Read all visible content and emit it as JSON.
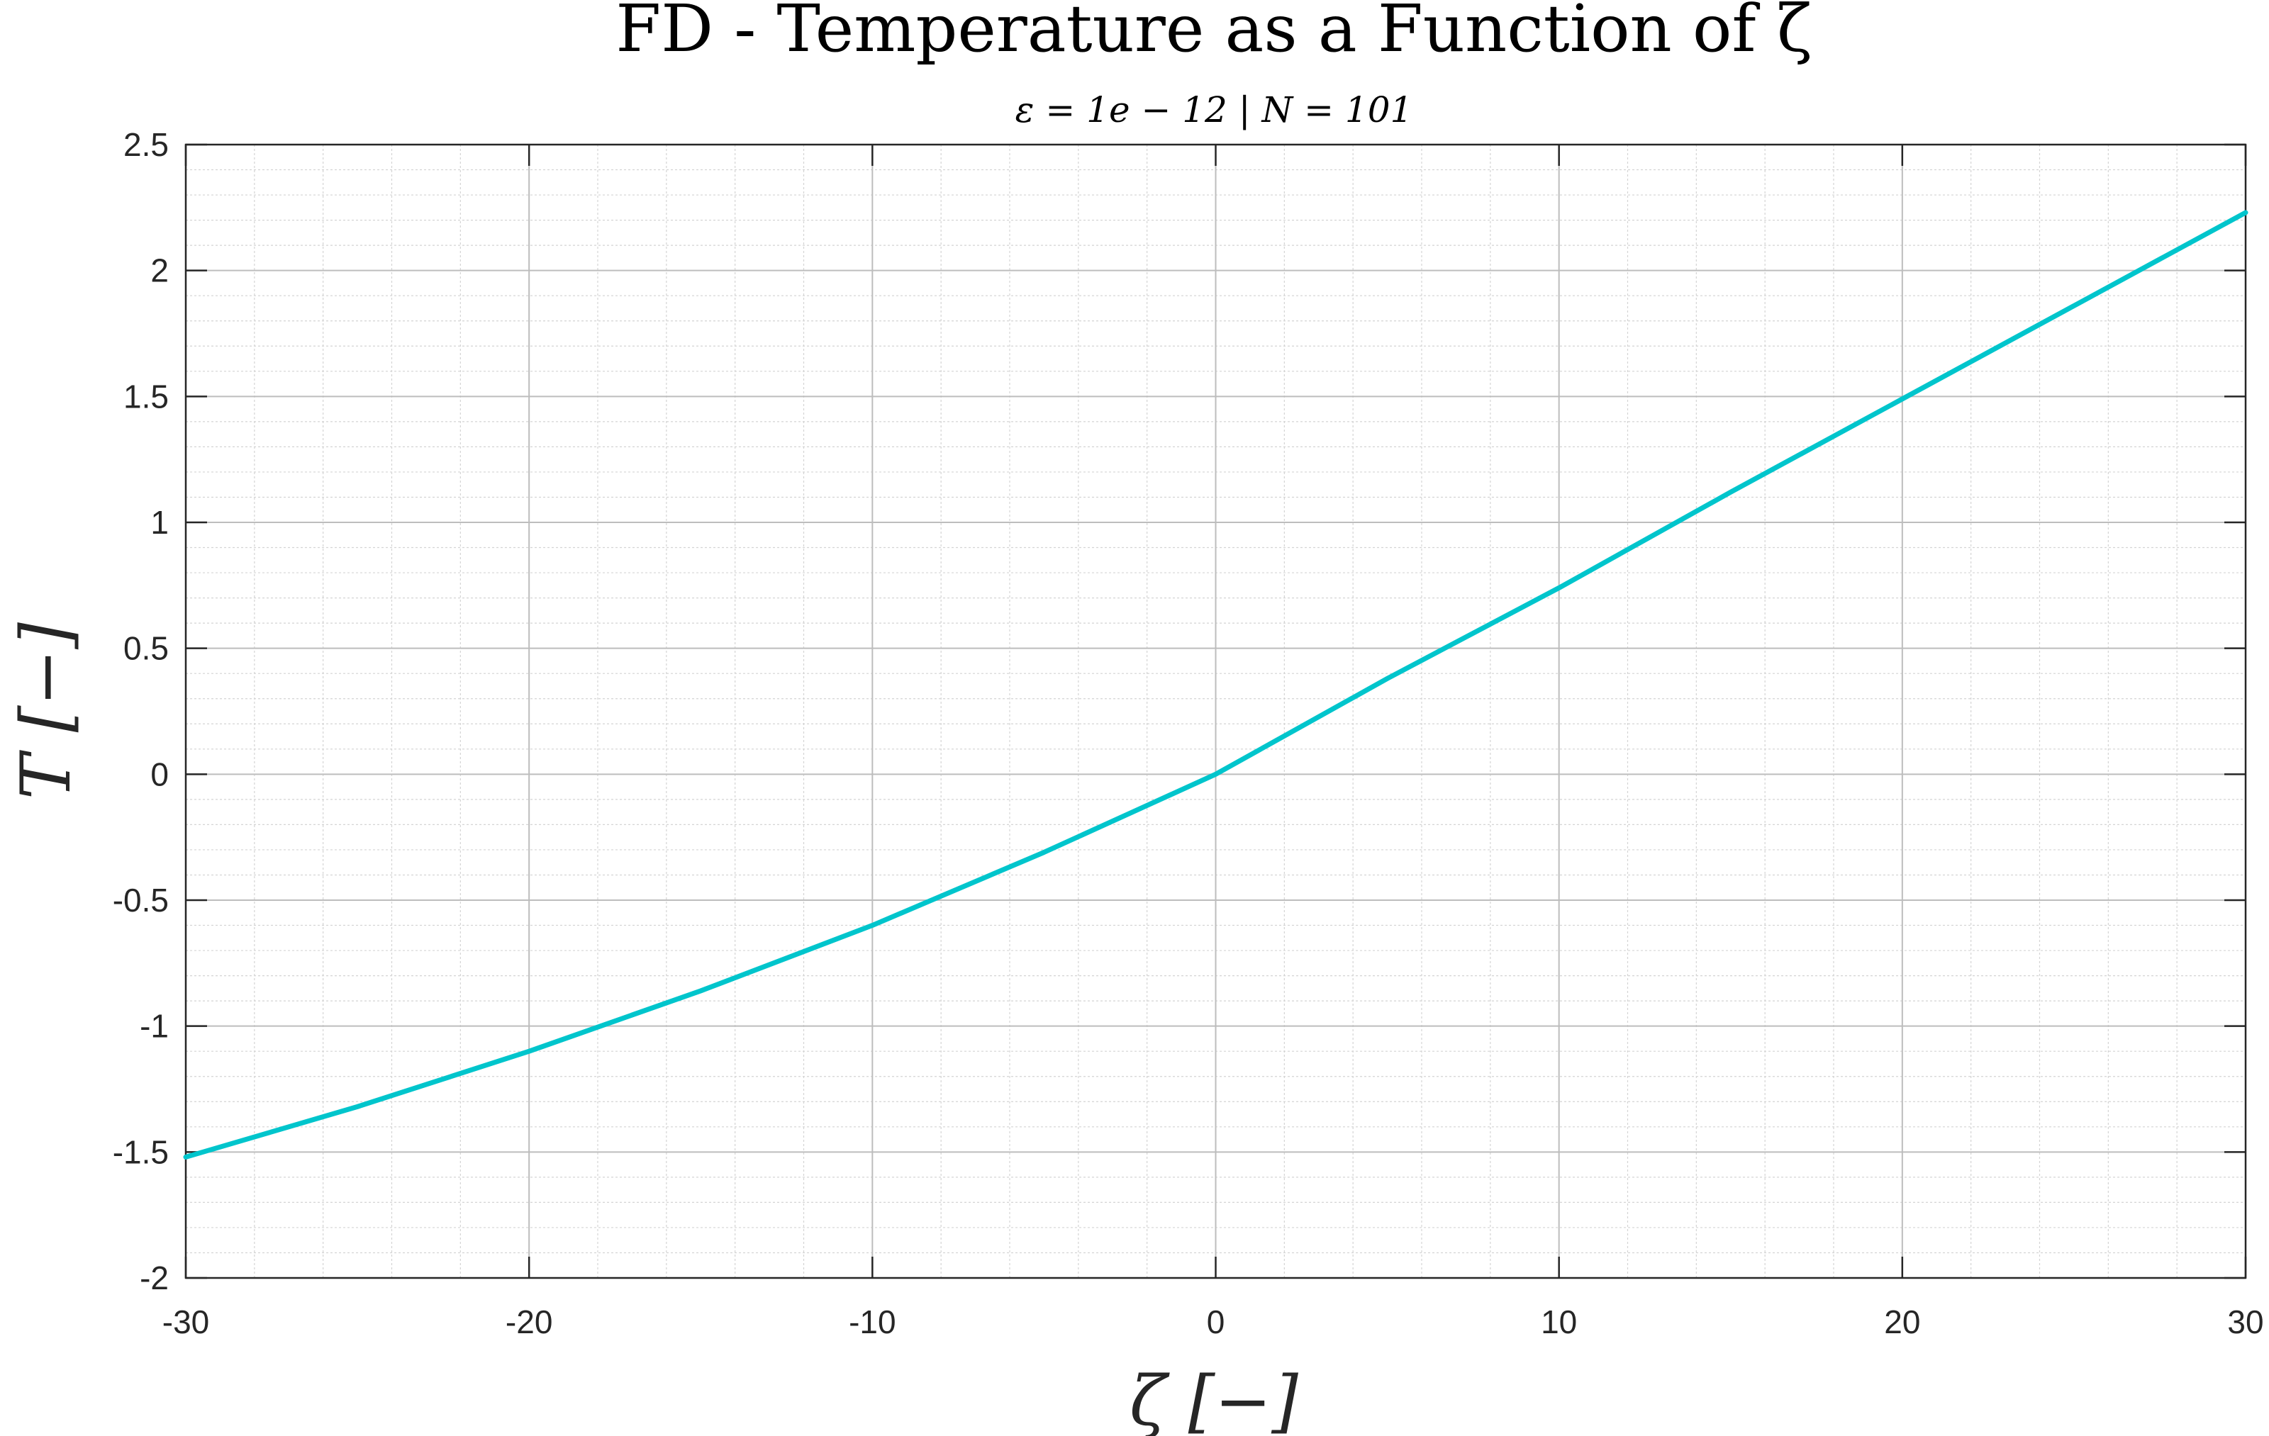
{
  "chart_data": {
    "type": "line",
    "title": "FD - Temperature as a Function of ζ",
    "subtitle": "ε = 1e − 12 | N = 101",
    "xlabel": "ζ [−]",
    "ylabel": "T [−]",
    "xlim": [
      -30,
      30
    ],
    "ylim": [
      -2,
      2.5
    ],
    "x_ticks": [
      "-30",
      "-20",
      "-10",
      "0",
      "10",
      "20",
      "30"
    ],
    "y_ticks": [
      "2.5",
      "2",
      "1.5",
      "1",
      "0.5",
      "0",
      "-0.5",
      "-1",
      "-1.5",
      "-2"
    ],
    "grid": true,
    "minor_grid": true,
    "legend": "none",
    "colors": {
      "line": "#00c5cc",
      "grid": "#d4d4d4",
      "axes": "#262626"
    },
    "series": [
      {
        "x": [
          -30,
          -25,
          -20,
          -15,
          -10,
          -5,
          0,
          5,
          10,
          15,
          20,
          25,
          30
        ],
        "values": [
          -1.52,
          -1.32,
          -1.1,
          -0.86,
          -0.6,
          -0.31,
          0.0,
          0.38,
          0.74,
          1.12,
          1.49,
          1.86,
          2.23
        ]
      }
    ]
  }
}
